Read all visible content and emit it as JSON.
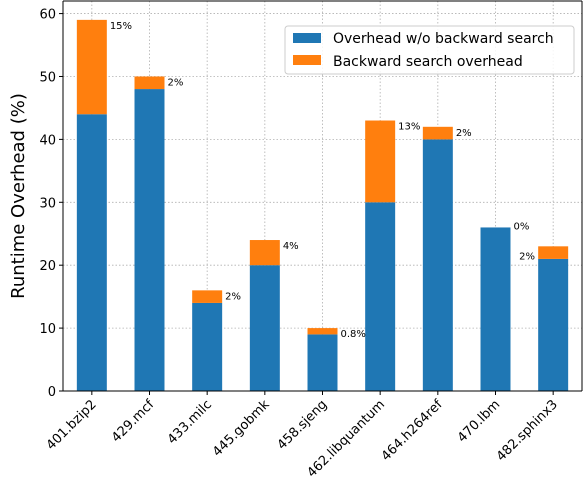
{
  "chart_data": {
    "type": "bar",
    "stacked": true,
    "categories": [
      "401.bzip2",
      "429.mcf",
      "433.milc",
      "445.gobmk",
      "458.sjeng",
      "462.libquantum",
      "464.h264ref",
      "470.lbm",
      "482.sphinx3"
    ],
    "series": [
      {
        "name": "Overhead w/o backward search",
        "color": "#1f77b4",
        "values": [
          44,
          48,
          14,
          20,
          9,
          30,
          40,
          26,
          21
        ]
      },
      {
        "name": "Backward search overhead",
        "color": "#ff7f0e",
        "values": [
          15,
          2,
          2,
          4,
          1,
          13,
          2,
          0,
          2
        ]
      }
    ],
    "annotations": [
      "15%",
      "2%",
      "2%",
      "4%",
      "0.8%",
      "13%",
      "2%",
      "0%",
      "2%"
    ],
    "title": "",
    "xlabel": "",
    "ylabel": "Runtime Overhead (%)",
    "ylim": [
      0,
      62
    ],
    "yticks": [
      0,
      10,
      20,
      30,
      40,
      50,
      60
    ],
    "grid": true,
    "legend_position": "top-right"
  }
}
